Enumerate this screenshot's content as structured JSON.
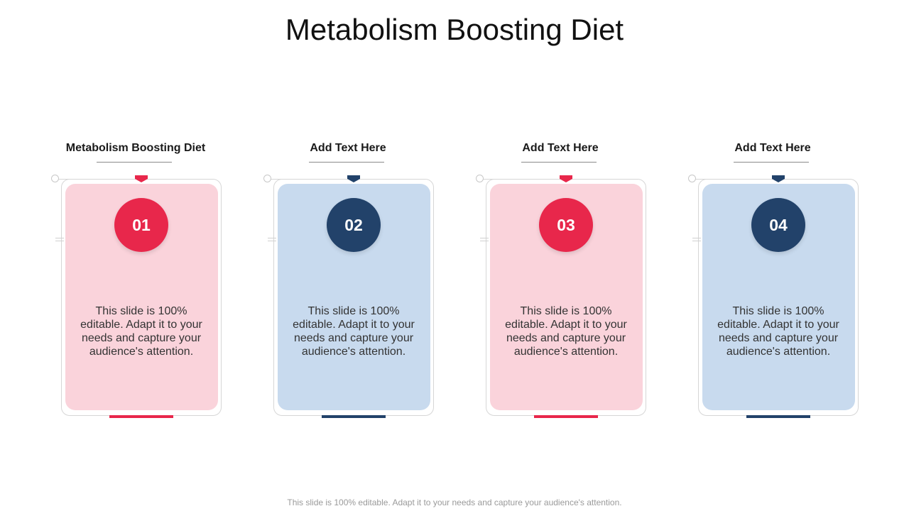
{
  "slide": {
    "title": "Metabolism Boosting Diet",
    "footer": "This slide is 100% editable. Adapt it to your needs and capture your audience's attention."
  },
  "colors": {
    "red": "#E8274B",
    "navy": "#22426A",
    "pink_panel": "#FAD3DB",
    "blue_panel": "#C8DAEE"
  },
  "cards": [
    {
      "heading": "Metabolism Boosting Diet",
      "number": "01",
      "description": "This slide is 100% editable. Adapt it to your needs and capture your audience's attention.",
      "theme": "red"
    },
    {
      "heading": "Add Text Here",
      "number": "02",
      "description": "This slide is 100% editable. Adapt it to your needs and capture your audience's attention.",
      "theme": "navy"
    },
    {
      "heading": "Add Text Here",
      "number": "03",
      "description": "This slide is 100% editable. Adapt it to your needs and capture your audience's attention.",
      "theme": "red"
    },
    {
      "heading": "Add Text Here",
      "number": "04",
      "description": "This slide is 100% editable. Adapt it to your needs and capture your audience's attention.",
      "theme": "navy"
    }
  ]
}
